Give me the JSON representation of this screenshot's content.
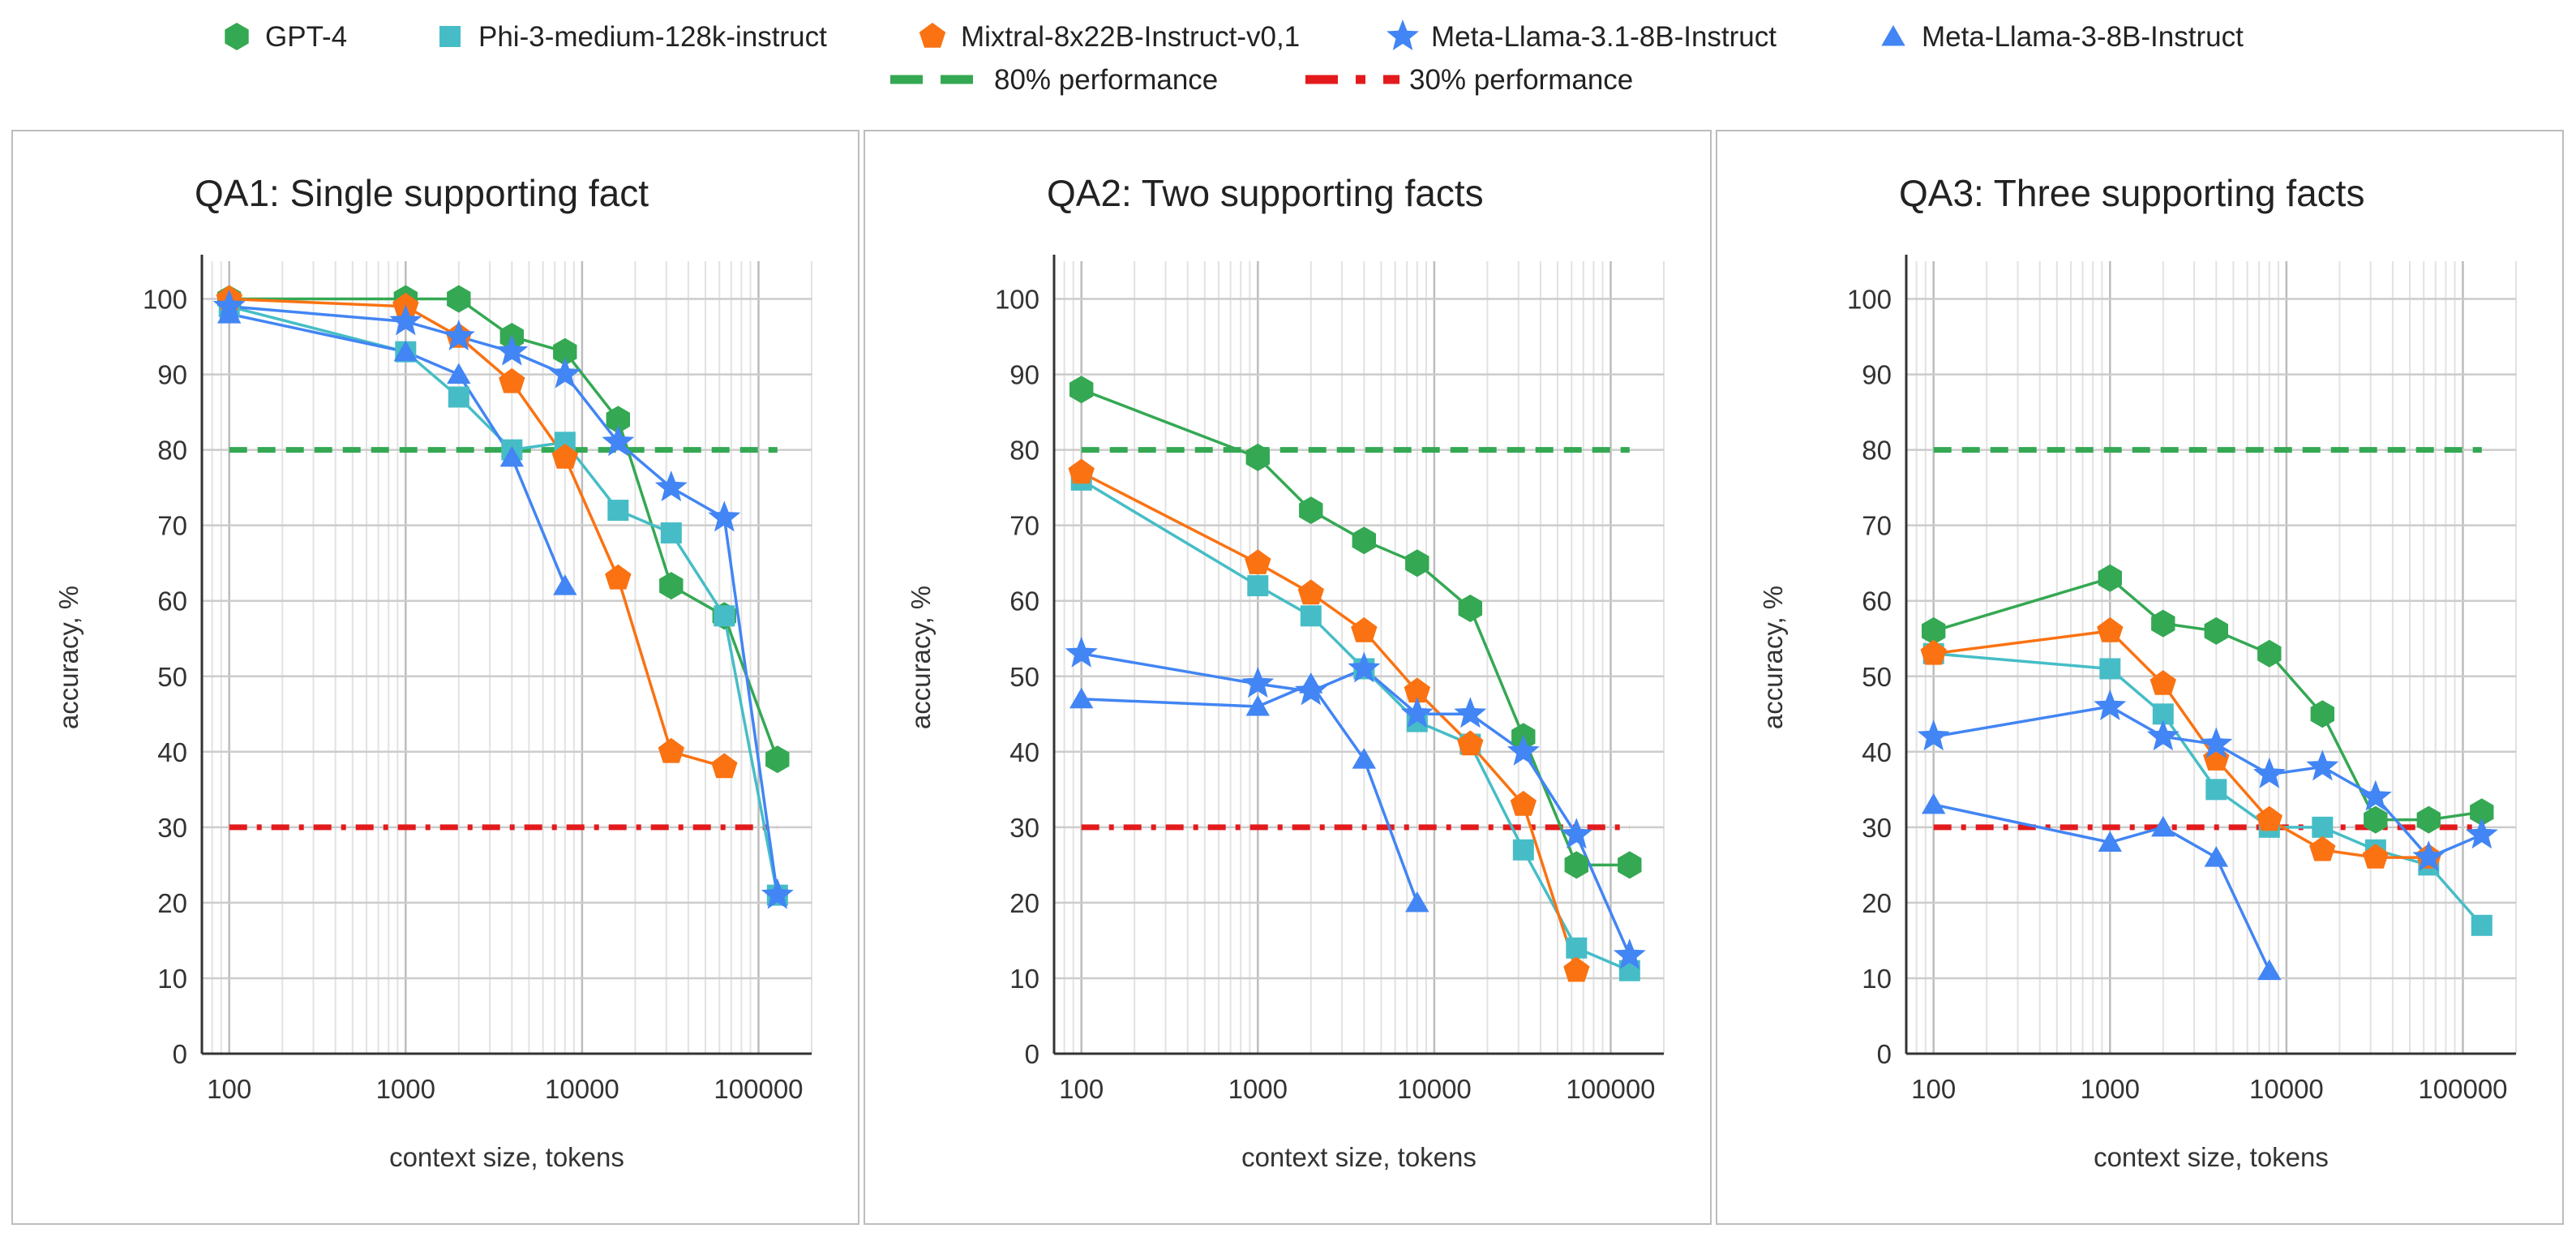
{
  "legend": {
    "series": [
      {
        "name": "GPT-4",
        "color": "#34a853",
        "marker": "hexagon"
      },
      {
        "name": "Phi-3-medium-128k-instruct",
        "color": "#46bdc6",
        "marker": "square"
      },
      {
        "name": "Mixtral-8x22B-Instruct-v0,1",
        "color": "#fa7212",
        "marker": "pentagon"
      },
      {
        "name": "Meta-Llama-3.1-8B-Instruct",
        "color": "#4285f4",
        "marker": "star"
      },
      {
        "name": "Meta-Llama-3-8B-Instruct",
        "color": "#4285f4",
        "marker": "triangle"
      }
    ],
    "references": [
      {
        "name": "80% performance",
        "color": "#34a853",
        "style": "dashed"
      },
      {
        "name": "30% performance",
        "color": "#e31a1c",
        "style": "dash-dot"
      }
    ]
  },
  "chart_data": [
    {
      "type": "line",
      "title": "QA1: Single supporting fact",
      "xlabel": "context size, tokens",
      "ylabel": "accuracy, %",
      "xscale": "log",
      "xlim": [
        70,
        200000
      ],
      "ylim": [
        0,
        105
      ],
      "x_ticks": [
        "100",
        "1000",
        "10000",
        "100000"
      ],
      "y_ticks": [
        "0",
        "10",
        "20",
        "30",
        "40",
        "50",
        "60",
        "70",
        "80",
        "90",
        "100"
      ],
      "grid": true,
      "reference_lines": [
        80,
        30
      ],
      "series": [
        {
          "name": "GPT-4",
          "x": [
            100,
            1000,
            2000,
            4000,
            8000,
            16000,
            32000,
            64000,
            128000
          ],
          "values": [
            100,
            100,
            100,
            95,
            93,
            84,
            62,
            58,
            39
          ]
        },
        {
          "name": "Phi-3-medium-128k-instruct",
          "x": [
            100,
            1000,
            2000,
            4000,
            8000,
            16000,
            32000,
            64000,
            128000
          ],
          "values": [
            99,
            93,
            87,
            80,
            81,
            72,
            69,
            58,
            21
          ]
        },
        {
          "name": "Mixtral-8x22B-Instruct-v0,1",
          "x": [
            100,
            1000,
            2000,
            4000,
            8000,
            16000,
            32000,
            64000
          ],
          "values": [
            100,
            99,
            95,
            89,
            79,
            63,
            40,
            38
          ]
        },
        {
          "name": "Meta-Llama-3.1-8B-Instruct",
          "x": [
            100,
            1000,
            2000,
            4000,
            8000,
            16000,
            32000,
            64000,
            128000
          ],
          "values": [
            99,
            97,
            95,
            93,
            90,
            81,
            75,
            71,
            21
          ]
        },
        {
          "name": "Meta-Llama-3-8B-Instruct",
          "x": [
            100,
            1000,
            2000,
            4000,
            8000
          ],
          "values": [
            98,
            93,
            90,
            79,
            62
          ]
        }
      ]
    },
    {
      "type": "line",
      "title": "QA2: Two supporting facts",
      "xlabel": "context size, tokens",
      "ylabel": "accuracy, %",
      "xscale": "log",
      "xlim": [
        70,
        200000
      ],
      "ylim": [
        0,
        105
      ],
      "x_ticks": [
        "100",
        "1000",
        "10000",
        "100000"
      ],
      "y_ticks": [
        "0",
        "10",
        "20",
        "30",
        "40",
        "50",
        "60",
        "70",
        "80",
        "90",
        "100"
      ],
      "grid": true,
      "reference_lines": [
        80,
        30
      ],
      "series": [
        {
          "name": "GPT-4",
          "x": [
            100,
            1000,
            2000,
            4000,
            8000,
            16000,
            32000,
            64000,
            128000
          ],
          "values": [
            88,
            79,
            72,
            68,
            65,
            59,
            42,
            25,
            25
          ]
        },
        {
          "name": "Phi-3-medium-128k-instruct",
          "x": [
            100,
            1000,
            2000,
            4000,
            8000,
            16000,
            32000,
            64000,
            128000
          ],
          "values": [
            76,
            62,
            58,
            51,
            44,
            41,
            27,
            14,
            11
          ]
        },
        {
          "name": "Mixtral-8x22B-Instruct-v0,1",
          "x": [
            100,
            1000,
            2000,
            4000,
            8000,
            16000,
            32000,
            64000
          ],
          "values": [
            77,
            65,
            61,
            56,
            48,
            41,
            33,
            11
          ]
        },
        {
          "name": "Meta-Llama-3.1-8B-Instruct",
          "x": [
            100,
            1000,
            2000,
            4000,
            8000,
            16000,
            32000,
            64000,
            128000
          ],
          "values": [
            53,
            49,
            48,
            51,
            45,
            45,
            40,
            29,
            13
          ]
        },
        {
          "name": "Meta-Llama-3-8B-Instruct",
          "x": [
            100,
            1000,
            2000,
            4000,
            8000
          ],
          "values": [
            47,
            46,
            49,
            39,
            20
          ]
        }
      ]
    },
    {
      "type": "line",
      "title": "QA3: Three supporting facts",
      "xlabel": "context size, tokens",
      "ylabel": "accuracy, %",
      "xscale": "log",
      "xlim": [
        70,
        200000
      ],
      "ylim": [
        0,
        105
      ],
      "x_ticks": [
        "100",
        "1000",
        "10000",
        "100000"
      ],
      "y_ticks": [
        "0",
        "10",
        "20",
        "30",
        "40",
        "50",
        "60",
        "70",
        "80",
        "90",
        "100"
      ],
      "grid": true,
      "reference_lines": [
        80,
        30
      ],
      "series": [
        {
          "name": "GPT-4",
          "x": [
            100,
            1000,
            2000,
            4000,
            8000,
            16000,
            32000,
            64000,
            128000
          ],
          "values": [
            56,
            63,
            57,
            56,
            53,
            45,
            31,
            31,
            32
          ]
        },
        {
          "name": "Phi-3-medium-128k-instruct",
          "x": [
            100,
            1000,
            2000,
            4000,
            8000,
            16000,
            32000,
            64000,
            128000
          ],
          "values": [
            53,
            51,
            45,
            35,
            30,
            30,
            27,
            25,
            17
          ]
        },
        {
          "name": "Mixtral-8x22B-Instruct-v0,1",
          "x": [
            100,
            1000,
            2000,
            4000,
            8000,
            16000,
            32000,
            64000
          ],
          "values": [
            53,
            56,
            49,
            39,
            31,
            27,
            26,
            26
          ]
        },
        {
          "name": "Meta-Llama-3.1-8B-Instruct",
          "x": [
            100,
            1000,
            2000,
            4000,
            8000,
            16000,
            32000,
            64000,
            128000
          ],
          "values": [
            42,
            46,
            42,
            41,
            37,
            38,
            34,
            26,
            29
          ]
        },
        {
          "name": "Meta-Llama-3-8B-Instruct",
          "x": [
            100,
            1000,
            2000,
            4000,
            8000
          ],
          "values": [
            33,
            28,
            30,
            26,
            11
          ]
        }
      ]
    }
  ]
}
